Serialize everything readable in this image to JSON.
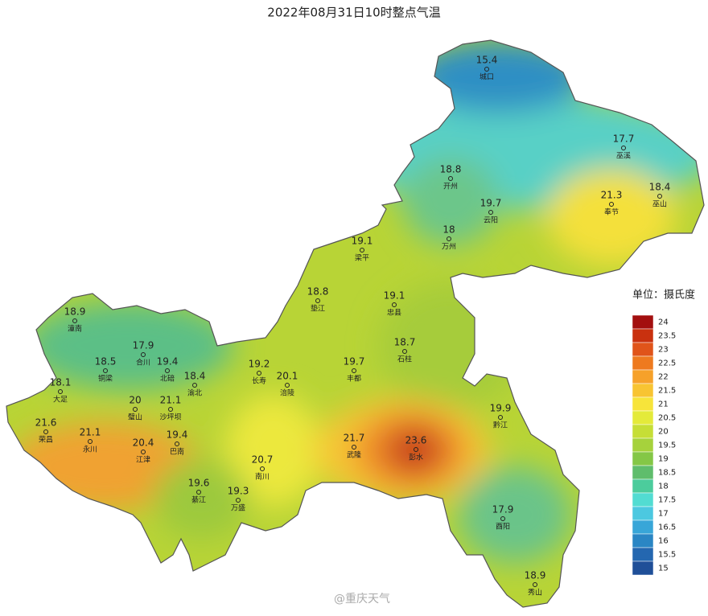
{
  "title": "2022年08月31日10时整点气温",
  "stations": [
    {
      "name": "城口",
      "value": 15.4
    },
    {
      "name": "巫溪",
      "value": 17.7
    },
    {
      "name": "开州",
      "value": 18.8
    },
    {
      "name": "奉节",
      "value": 21.3
    },
    {
      "name": "巫山",
      "value": 18.4
    },
    {
      "name": "云阳",
      "value": 19.7
    },
    {
      "name": "万州",
      "value": 18
    },
    {
      "name": "梁平",
      "value": 19.1
    },
    {
      "name": "垫江",
      "value": 18.8
    },
    {
      "name": "忠县",
      "value": 19.1
    },
    {
      "name": "潼南",
      "value": 18.9
    },
    {
      "name": "合川",
      "value": 17.9
    },
    {
      "name": "铜梁",
      "value": 18.5
    },
    {
      "name": "北碚",
      "value": 19.4
    },
    {
      "name": "渝北",
      "value": 18.4
    },
    {
      "name": "长寿",
      "value": 19.2
    },
    {
      "name": "涪陵",
      "value": 20.1
    },
    {
      "name": "丰都",
      "value": 19.7
    },
    {
      "name": "石柱",
      "value": 18.7
    },
    {
      "name": "大足",
      "value": 18.1
    },
    {
      "name": "璧山",
      "value": 20
    },
    {
      "name": "沙坪坝",
      "value": 21.1
    },
    {
      "name": "荣昌",
      "value": 21.6
    },
    {
      "name": "永川",
      "value": 21.1
    },
    {
      "name": "江津",
      "value": 20.4
    },
    {
      "name": "巴南",
      "value": 19.4
    },
    {
      "name": "武隆",
      "value": 21.7
    },
    {
      "name": "彭水",
      "value": 23.6
    },
    {
      "name": "黔江",
      "value": 19.9
    },
    {
      "name": "南川",
      "value": 20.7
    },
    {
      "name": "綦江",
      "value": 19.6
    },
    {
      "name": "万盛",
      "value": 19.3
    },
    {
      "name": "酉阳",
      "value": 17.9
    },
    {
      "name": "秀山",
      "value": 18.9
    }
  ],
  "legend": {
    "title": "单位：摄氏度",
    "ticks": [
      24,
      23.5,
      23,
      22.5,
      22,
      21.5,
      21,
      20.5,
      20,
      19.5,
      19,
      18.5,
      18,
      17.5,
      17,
      16.5,
      16,
      15.5,
      15
    ]
  },
  "watermark": "@重庆天气"
}
